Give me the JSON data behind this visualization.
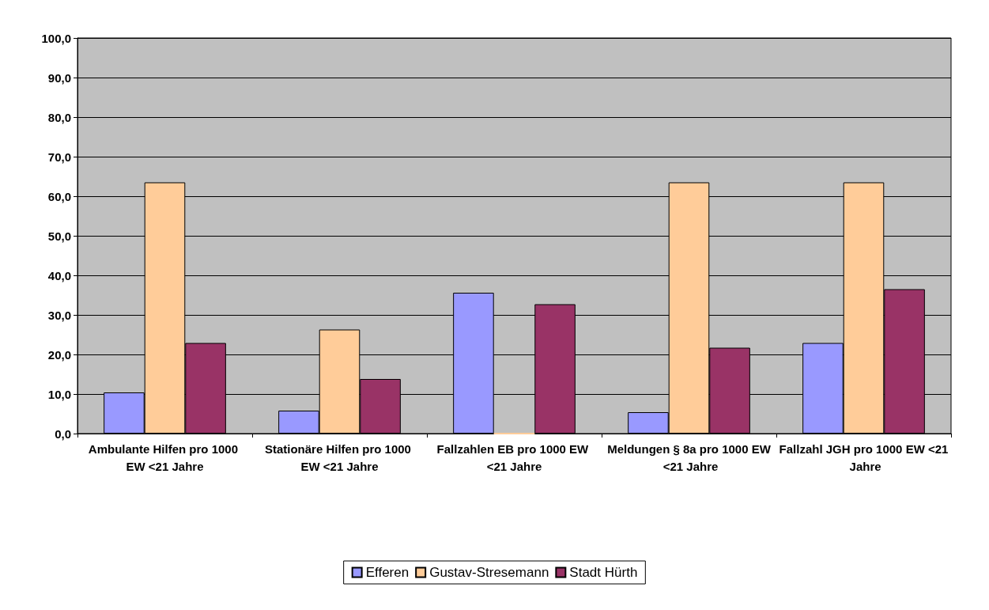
{
  "chart_data": {
    "type": "bar",
    "categories": [
      "Ambulante Hilfen pro 1000 EW <21 Jahre",
      "Stationäre Hilfen pro 1000 EW <21 Jahre",
      "Fallzahlen EB pro 1000 EW <21 Jahre",
      "Meldungen § 8a pro 1000 EW <21 Jahre",
      "Fallzahl JGH pro 1000 EW <21 Jahre"
    ],
    "series": [
      {
        "name": "Efferen",
        "color": "#9999ff",
        "values": [
          10.4,
          5.8,
          35.6,
          5.4,
          22.9
        ]
      },
      {
        "name": "Gustav-Stresemann",
        "color": "#ffcc99",
        "values": [
          63.5,
          26.3,
          0,
          63.5,
          63.5
        ]
      },
      {
        "name": "Stadt Hürth",
        "color": "#993366",
        "values": [
          22.9,
          13.8,
          32.7,
          21.7,
          36.5
        ]
      }
    ],
    "ylim": [
      0,
      100
    ],
    "yticks": [
      {
        "value": 0,
        "label": "0,0"
      },
      {
        "value": 10,
        "label": "10,0"
      },
      {
        "value": 20,
        "label": "20,0"
      },
      {
        "value": 30,
        "label": "30,0"
      },
      {
        "value": 40,
        "label": "40,0"
      },
      {
        "value": 50,
        "label": "50,0"
      },
      {
        "value": 60,
        "label": "60,0"
      },
      {
        "value": 70,
        "label": "70,0"
      },
      {
        "value": 80,
        "label": "80,0"
      },
      {
        "value": 90,
        "label": "90,0"
      },
      {
        "value": 100,
        "label": "100,0"
      }
    ],
    "grid": "y",
    "legend": "bottom"
  }
}
